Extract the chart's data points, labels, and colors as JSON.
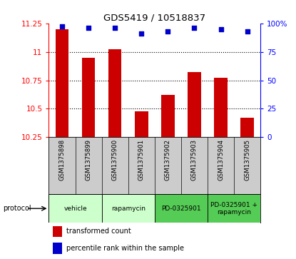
{
  "title": "GDS5419 / 10518837",
  "samples": [
    "GSM1375898",
    "GSM1375899",
    "GSM1375900",
    "GSM1375901",
    "GSM1375902",
    "GSM1375903",
    "GSM1375904",
    "GSM1375905"
  ],
  "bar_values": [
    11.2,
    10.95,
    11.02,
    10.48,
    10.62,
    10.82,
    10.77,
    10.42
  ],
  "dot_values": [
    97,
    96,
    96,
    91,
    93,
    96,
    95,
    93
  ],
  "ylim_left": [
    10.25,
    11.25
  ],
  "ylim_right": [
    0,
    100
  ],
  "yticks_left": [
    10.25,
    10.5,
    10.75,
    11.0,
    11.25
  ],
  "ytick_labels_left": [
    "10.25",
    "10.5",
    "10.75",
    "11",
    "11.25"
  ],
  "yticks_right": [
    0,
    25,
    50,
    75,
    100
  ],
  "ytick_labels_right": [
    "0",
    "25",
    "50",
    "75",
    "100%"
  ],
  "bar_color": "#cc0000",
  "dot_color": "#0000cc",
  "bar_baseline": 10.25,
  "protocols": [
    {
      "label": "vehicle",
      "start": 0,
      "end": 2,
      "color": "#ccffcc"
    },
    {
      "label": "rapamycin",
      "start": 2,
      "end": 4,
      "color": "#ccffcc"
    },
    {
      "label": "PD-0325901",
      "start": 4,
      "end": 6,
      "color": "#55cc55"
    },
    {
      "label": "PD-0325901 +\nrapamycin",
      "start": 6,
      "end": 8,
      "color": "#55cc55"
    }
  ],
  "legend_bar_label": "transformed count",
  "legend_dot_label": "percentile rank within the sample",
  "protocol_label": "protocol",
  "background_color": "#ffffff",
  "plot_bg_color": "#ffffff",
  "sample_bg_color": "#cccccc",
  "grid_lines": [
    10.5,
    10.75,
    11.0
  ]
}
